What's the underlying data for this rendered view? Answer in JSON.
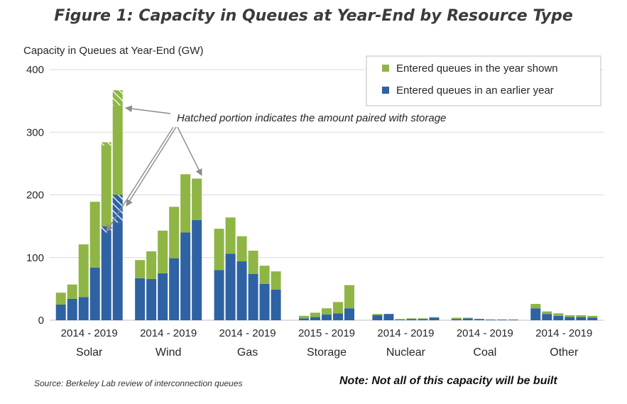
{
  "figure_title": "Figure 1: Capacity in Queues at Year-End by Resource Type",
  "source": "Source: Berkeley Lab review of interconnection queues",
  "note": "Note: Not all of this capacity will be built",
  "colors": {
    "earlier": "#2e62a3",
    "shown": "#8fb545",
    "grid": "#d9d9d9",
    "text": "#262626"
  },
  "chart_data": {
    "type": "bar",
    "stacked": true,
    "ylabel": "Capacity in Queues at Year-End (GW)",
    "ylim": [
      0,
      400
    ],
    "yticks": [
      0,
      100,
      200,
      300,
      400
    ],
    "grid": true,
    "legend_position": "top-right",
    "annotation": "Hatched portion indicates the amount paired with storage",
    "series": [
      {
        "name": "Entered queues in the year shown",
        "color": "#8fb545"
      },
      {
        "name": "Entered queues in an earlier year",
        "color": "#2e62a3"
      }
    ],
    "groups": [
      {
        "name": "Solar",
        "year_label": "2014 - 2019",
        "years": [
          2014,
          2015,
          2016,
          2017,
          2018,
          2019
        ],
        "earlier": [
          25,
          34,
          37,
          84,
          150,
          200
        ],
        "shown": [
          19,
          23,
          84,
          105,
          134,
          167
        ],
        "paired_storage_earlier": [
          0,
          0,
          0,
          0,
          10,
          44
        ],
        "paired_storage_shown": [
          0,
          0,
          0,
          0,
          5,
          24
        ]
      },
      {
        "name": "Wind",
        "year_label": "2014 - 2019",
        "years": [
          2014,
          2015,
          2016,
          2017,
          2018,
          2019
        ],
        "earlier": [
          67,
          66,
          75,
          99,
          140,
          160
        ],
        "shown": [
          29,
          44,
          68,
          82,
          93,
          66
        ]
      },
      {
        "name": "Gas",
        "year_label": "2014 - 2019",
        "years": [
          2014,
          2015,
          2016,
          2017,
          2018,
          2019
        ],
        "earlier": [
          80,
          106,
          94,
          74,
          58,
          49
        ],
        "shown": [
          66,
          58,
          40,
          37,
          29,
          29
        ]
      },
      {
        "name": "Storage",
        "year_label": "2015 - 2019",
        "years": [
          2015,
          2016,
          2017,
          2018,
          2019
        ],
        "earlier": [
          3,
          5,
          9,
          11,
          19
        ],
        "shown": [
          4,
          7,
          10,
          18,
          37
        ]
      },
      {
        "name": "Nuclear",
        "year_label": "2014 - 2019",
        "years": [
          2014,
          2015,
          2016,
          2017,
          2018,
          2019
        ],
        "earlier": [
          8,
          10,
          1,
          2,
          2,
          4
        ],
        "shown": [
          2,
          0,
          1,
          1,
          1,
          1
        ]
      },
      {
        "name": "Coal",
        "year_label": "2014 - 2019",
        "years": [
          2014,
          2015,
          2016,
          2017,
          2018,
          2019
        ],
        "earlier": [
          2,
          3,
          2,
          1,
          1,
          1
        ],
        "shown": [
          2,
          1,
          0,
          0,
          0,
          0
        ]
      },
      {
        "name": "Other",
        "year_label": "2014 - 2019",
        "years": [
          2014,
          2015,
          2016,
          2017,
          2018,
          2019
        ],
        "earlier": [
          19,
          10,
          7,
          5,
          5,
          4
        ],
        "shown": [
          7,
          4,
          4,
          3,
          3,
          3
        ]
      }
    ]
  }
}
